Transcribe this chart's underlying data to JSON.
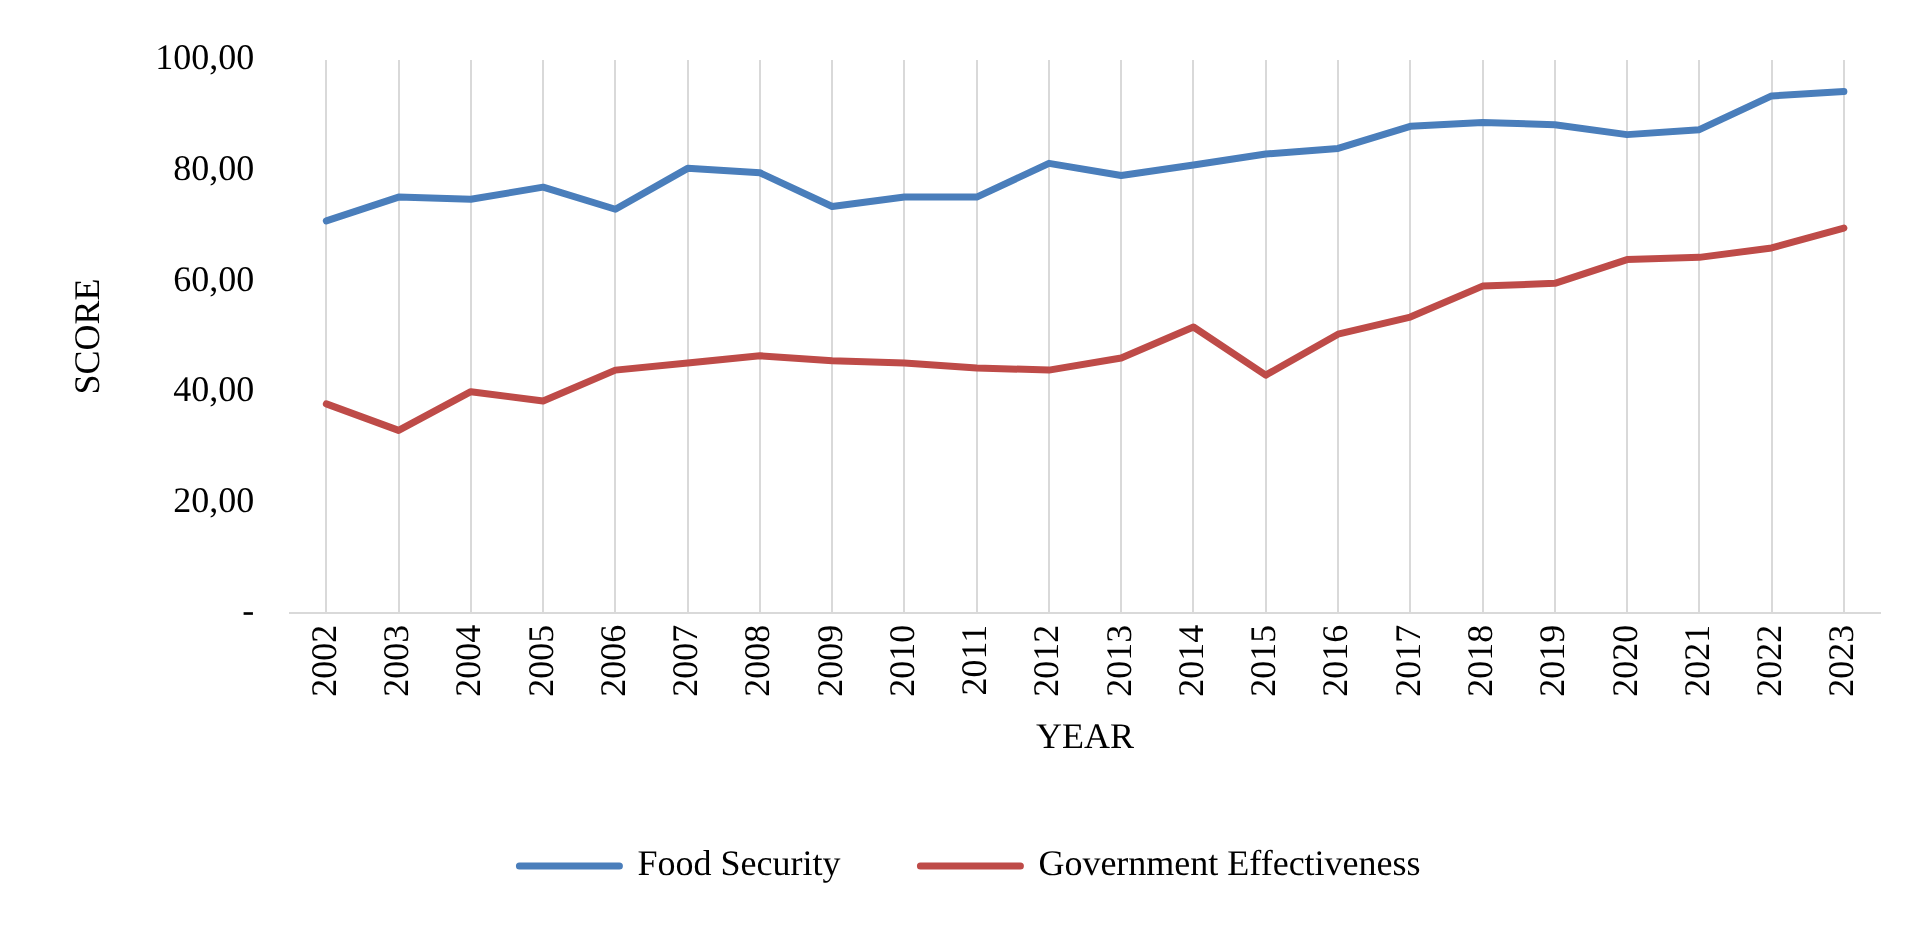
{
  "chart_data": {
    "type": "line",
    "xlabel": "YEAR",
    "ylabel": "SCORE",
    "categories": [
      "2002",
      "2003",
      "2004",
      "2005",
      "2006",
      "2007",
      "2008",
      "2009",
      "2010",
      "2011",
      "2012",
      "2013",
      "2014",
      "2015",
      "2016",
      "2017",
      "2018",
      "2019",
      "2020",
      "2021",
      "2022",
      "2023"
    ],
    "series": [
      {
        "name": "Food Security",
        "color": "#4a7ebb",
        "values": [
          70.9,
          75.2,
          74.8,
          77,
          73,
          80.4,
          79.6,
          73.5,
          75.2,
          75.2,
          81.3,
          79.1,
          81,
          83,
          84,
          88,
          88.7,
          88.3,
          86.5,
          87.4,
          93.5,
          94.3
        ]
      },
      {
        "name": "Government Effectiveness",
        "color": "#be4b48",
        "values": [
          37.8,
          33,
          40,
          38.3,
          43.9,
          45.2,
          46.5,
          45.6,
          45.2,
          44.3,
          43.9,
          46.1,
          51.7,
          43,
          50.4,
          53.5,
          59.1,
          59.6,
          63.9,
          64.3,
          66,
          69.6
        ]
      }
    ],
    "ylim": [
      0,
      100
    ],
    "yticks": [
      {
        "value": 0,
        "label": "-"
      },
      {
        "value": 20,
        "label": "20,00"
      },
      {
        "value": 40,
        "label": "40,00"
      },
      {
        "value": 60,
        "label": "60,00"
      },
      {
        "value": 80,
        "label": "80,00"
      },
      {
        "value": 100,
        "label": "100,00"
      }
    ],
    "grid": "x",
    "legend": "bottom",
    "marker": "none",
    "line_style": "solid"
  }
}
